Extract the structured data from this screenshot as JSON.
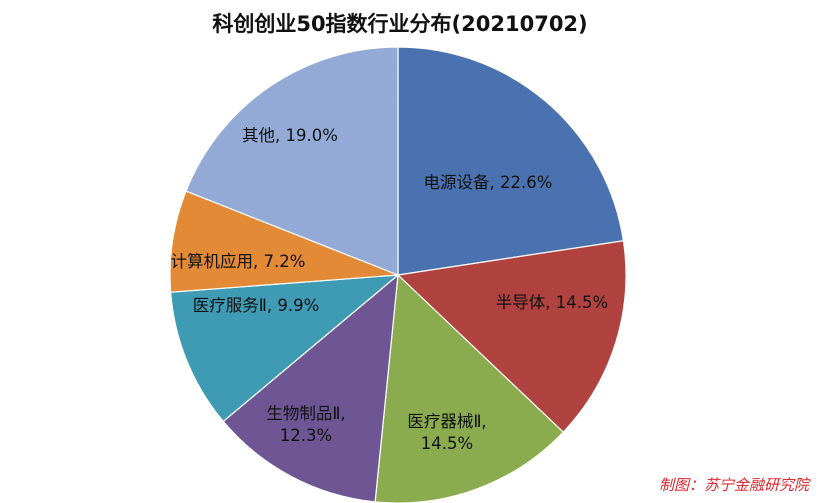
{
  "chart_data": {
    "type": "pie",
    "title": "科创创业50指数行业分布(20210702)",
    "categories": [
      "电源设备",
      "半导体",
      "医疗器械Ⅱ",
      "生物制品Ⅱ",
      "医疗服务Ⅱ",
      "计算机应用",
      "其他"
    ],
    "values": [
      22.6,
      14.5,
      14.5,
      12.3,
      9.9,
      7.2,
      19.0
    ],
    "labels": [
      [
        "电源设备, 22.6%"
      ],
      [
        "半导体, 14.5%"
      ],
      [
        "医疗器械Ⅱ,",
        "14.5%"
      ],
      [
        "生物制品Ⅱ,",
        "12.3%"
      ],
      [
        "医疗服务Ⅱ, 9.9%"
      ],
      [
        "计算机应用, 7.2%"
      ],
      [
        "其他, 19.0%"
      ]
    ],
    "colors": [
      "#4a72b0",
      "#b04340",
      "#8aac4e",
      "#6e5694",
      "#3f9bb3",
      "#e28a36",
      "#94aad6"
    ],
    "start": "12 o'clock",
    "direction": "clockwise"
  },
  "source_note": "制图：苏宁金融研究院"
}
